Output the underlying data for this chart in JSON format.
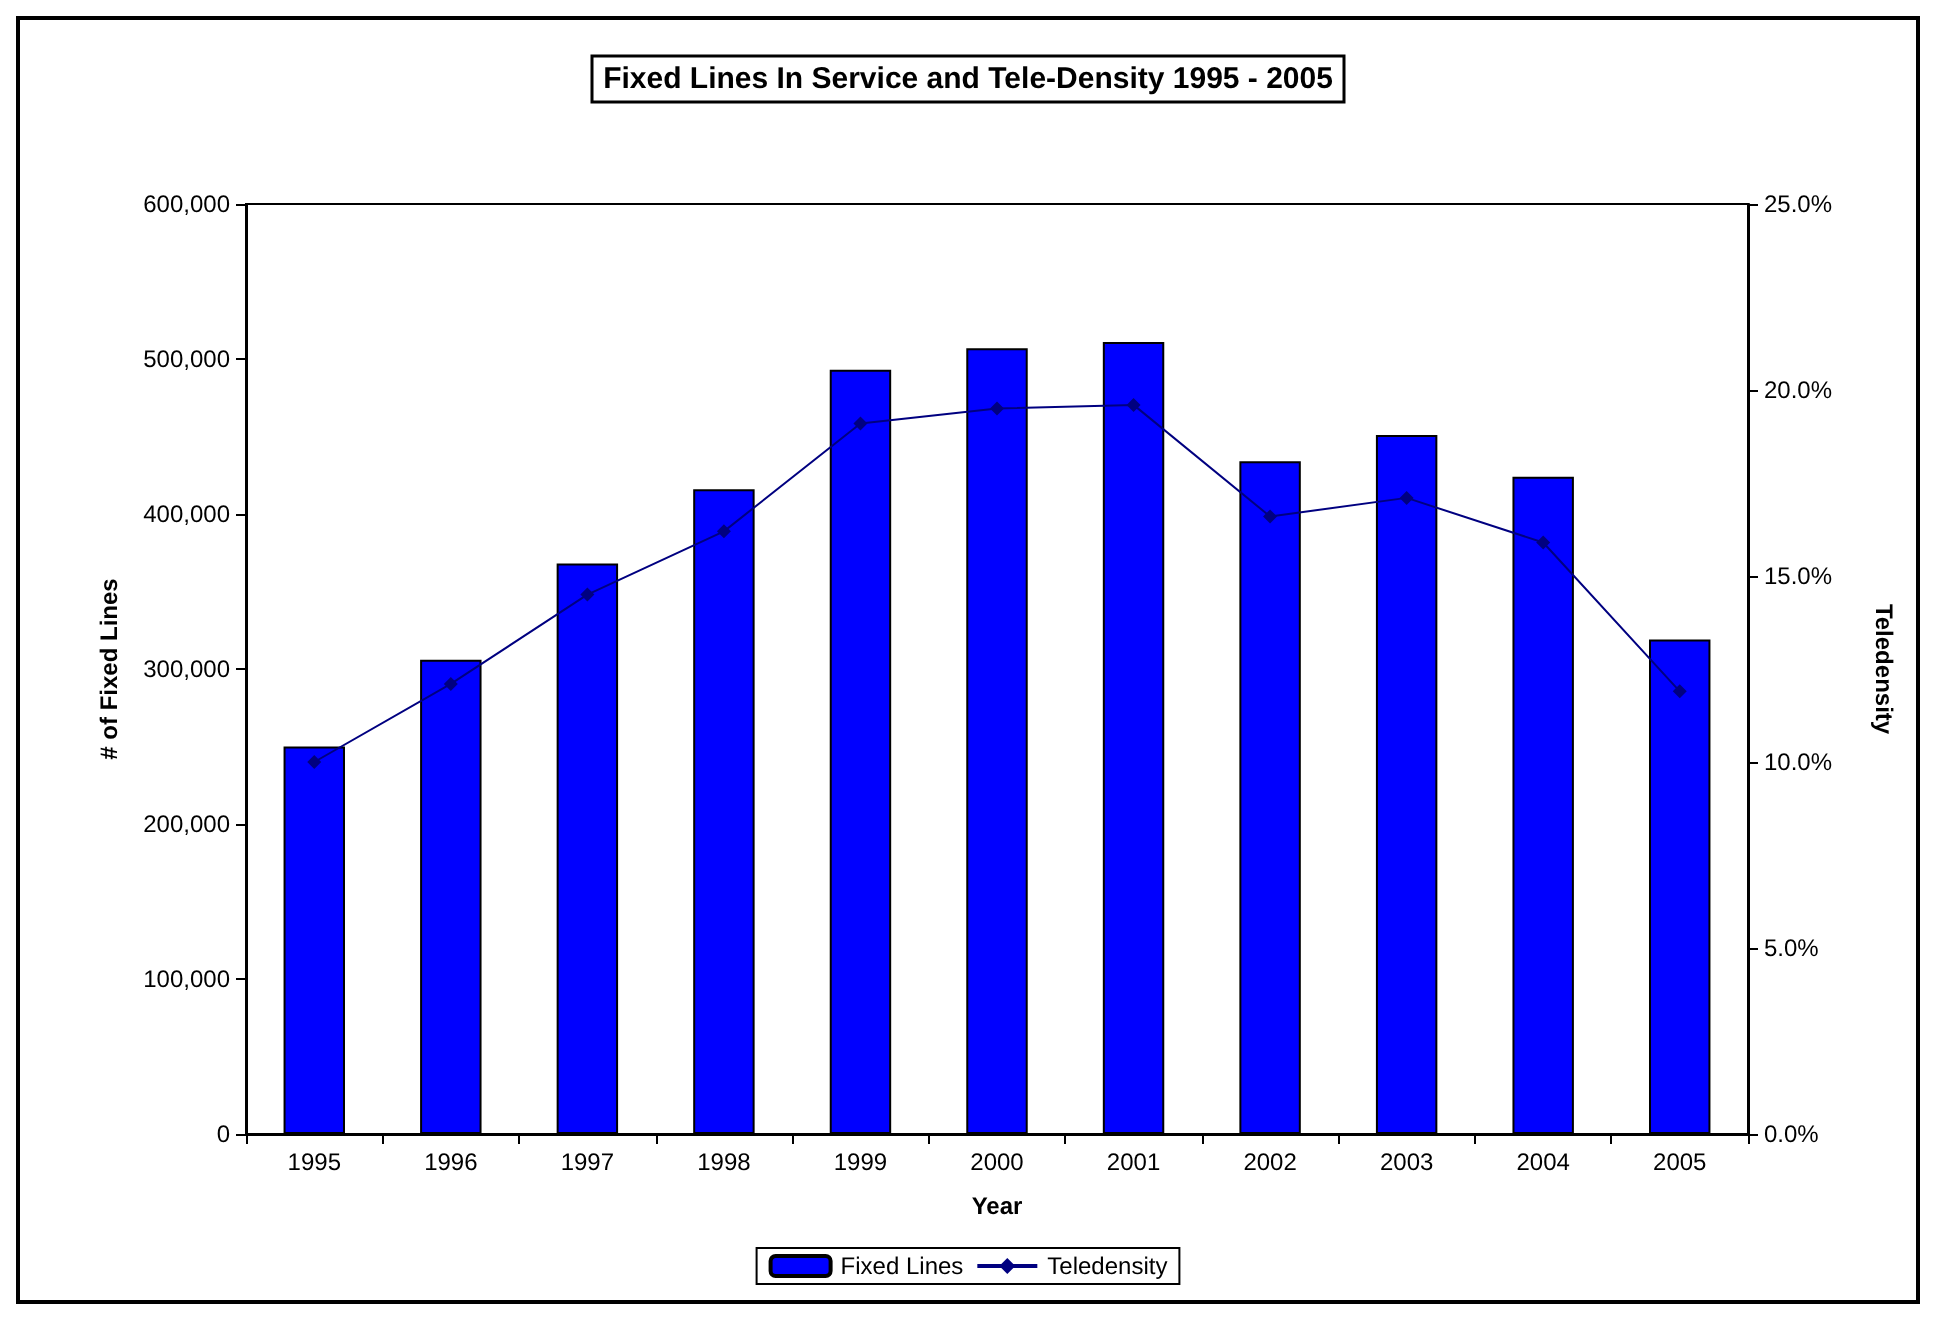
{
  "chart_data": {
    "type": "bar",
    "title": "Fixed Lines In Service and Tele-Density 1995 - 2005",
    "xlabel": "Year",
    "ylabel": "# of Fixed Lines",
    "y2label": "Teledensity",
    "categories": [
      "1995",
      "1996",
      "1997",
      "1998",
      "1999",
      "2000",
      "2001",
      "2002",
      "2003",
      "2004",
      "2005"
    ],
    "series": [
      {
        "name": "Fixed Lines",
        "color": "#0000ff",
        "values": [
          250000,
          306000,
          368000,
          416000,
          493000,
          507000,
          511000,
          434000,
          451000,
          424000,
          319000
        ]
      },
      {
        "name": "Teledensity",
        "type": "line",
        "axis": "y2",
        "color": "#000080",
        "marker": "diamond",
        "values": [
          10.0,
          12.1,
          14.5,
          16.2,
          19.1,
          19.5,
          19.6,
          16.6,
          17.1,
          15.9,
          11.9
        ]
      }
    ],
    "ylim": [
      0,
      600000
    ],
    "yticks": [
      {
        "value": 0,
        "label": "0"
      },
      {
        "value": 100000,
        "label": "100,000"
      },
      {
        "value": 200000,
        "label": "200,000"
      },
      {
        "value": 300000,
        "label": "300,000"
      },
      {
        "value": 400000,
        "label": "400,000"
      },
      {
        "value": 500000,
        "label": "500,000"
      },
      {
        "value": 600000,
        "label": "600,000"
      }
    ],
    "y2lim": [
      0,
      25
    ],
    "y2ticks": [
      {
        "value": 0,
        "label": "0.0%"
      },
      {
        "value": 5,
        "label": "5.0%"
      },
      {
        "value": 10,
        "label": "10.0%"
      },
      {
        "value": 15,
        "label": "15.0%"
      },
      {
        "value": 20,
        "label": "20.0%"
      },
      {
        "value": 25,
        "label": "25.0%"
      }
    ],
    "grid": false,
    "legend": "bottom"
  }
}
